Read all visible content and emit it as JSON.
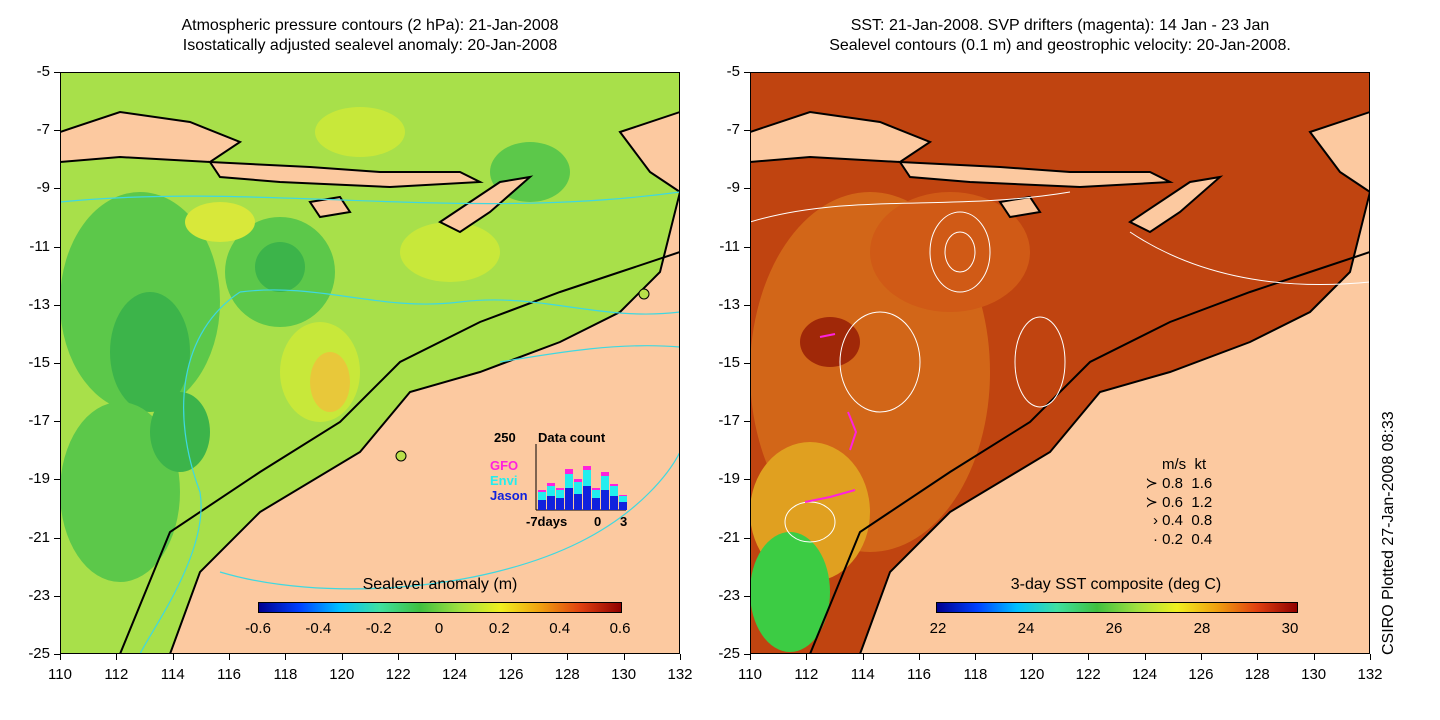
{
  "left_panel": {
    "title_line1": "Atmospheric pressure contours (2 hPa): 21-Jan-2008",
    "title_line2": "Isostatically adjusted sealevel anomaly: 20-Jan-2008",
    "colorbar_title": "Sealevel anomaly (m)",
    "colorbar_ticks": [
      "-0.6",
      "-0.4",
      "-0.2",
      "0",
      "0.2",
      "0.4",
      "0.6"
    ],
    "colors": {
      "ocean_base": "#a8e04a",
      "land": "#fcc9a0",
      "contour": "#3fd8e0"
    },
    "data_count": {
      "title": "Data count",
      "max_label": "250",
      "x_ticks": [
        "-7days",
        "0",
        "3"
      ],
      "legend": [
        {
          "label": "GFO",
          "color": "#ff22dd"
        },
        {
          "label": "Envi",
          "color": "#22eeee"
        },
        {
          "label": "Jason",
          "color": "#1122dd"
        }
      ]
    }
  },
  "right_panel": {
    "title_line1": "SST: 21-Jan-2008. SVP drifters (magenta): 14 Jan - 23 Jan",
    "title_line2": "Sealevel contours (0.1 m) and geostrophic velocity: 20-Jan-2008.",
    "colorbar_title": "3-day SST composite (deg C)",
    "colorbar_ticks": [
      "22",
      "24",
      "26",
      "28",
      "30"
    ],
    "colors": {
      "ocean_base": "#c04410",
      "land": "#fcc9a0",
      "contour": "#ffffff"
    },
    "velocity_legend": {
      "header": [
        "m/s",
        "kt"
      ],
      "rows": [
        [
          "0.8",
          "1.6"
        ],
        [
          "0.6",
          "1.2"
        ],
        [
          "0.4",
          "0.8"
        ],
        [
          "0.2",
          "0.4"
        ]
      ]
    }
  },
  "y_ticks": [
    "-5",
    "-7",
    "-9",
    "-11",
    "-13",
    "-15",
    "-17",
    "-19",
    "-21",
    "-23",
    "-25"
  ],
  "x_ticks": [
    "110",
    "112",
    "114",
    "116",
    "118",
    "120",
    "122",
    "124",
    "126",
    "128",
    "130",
    "132"
  ],
  "side_label": "CSIRO Plotted 27-Jan-2008 08:33"
}
